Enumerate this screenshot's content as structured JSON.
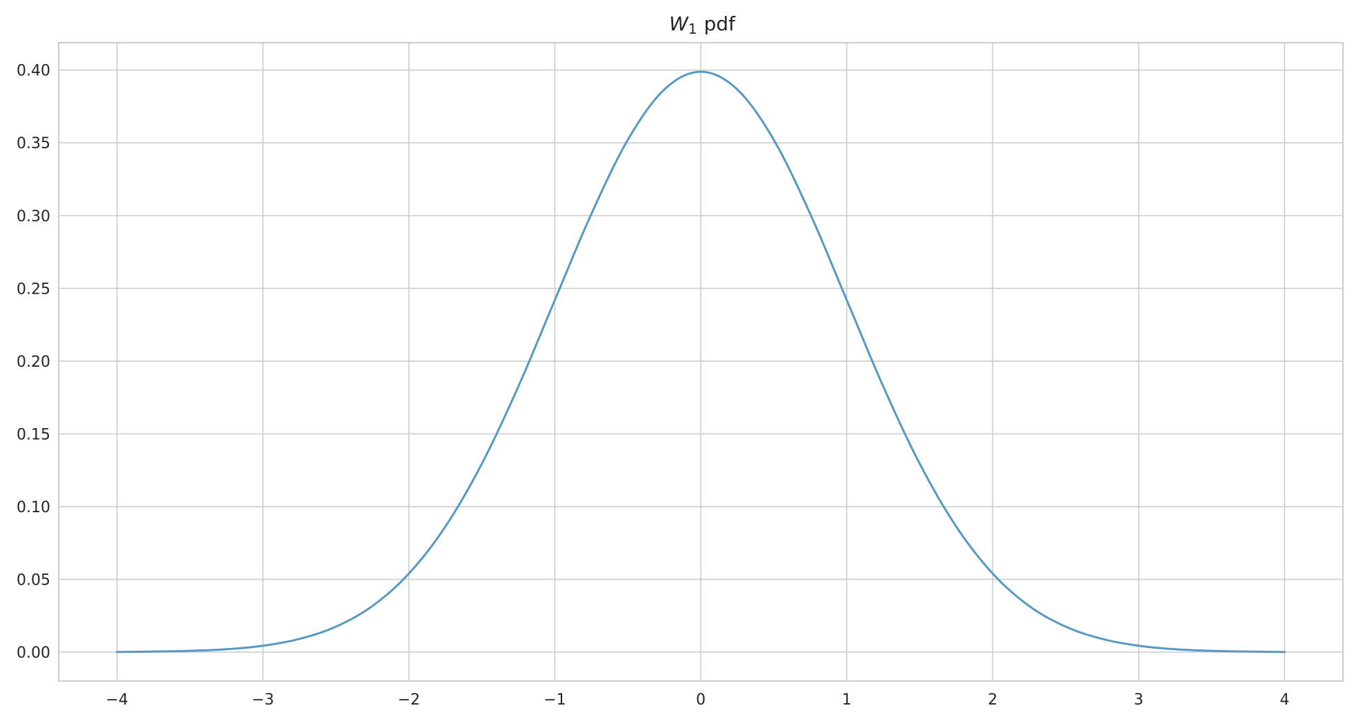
{
  "chart_data": {
    "type": "line",
    "title": {
      "var": "W",
      "sub": "1",
      "suffix": "pdf"
    },
    "xlabel": "",
    "ylabel": "",
    "xlim": [
      -4.4,
      4.4
    ],
    "ylim": [
      -0.0199,
      0.4188
    ],
    "grid": true,
    "legend": "none",
    "x_ticks": [
      -4,
      -3,
      -2,
      -1,
      0,
      1,
      2,
      3,
      4
    ],
    "x_tick_labels": [
      "−4",
      "−3",
      "−2",
      "−1",
      "0",
      "1",
      "2",
      "3",
      "4"
    ],
    "y_ticks": [
      0.0,
      0.05,
      0.1,
      0.15,
      0.2,
      0.25,
      0.3,
      0.35,
      0.4
    ],
    "y_tick_labels": [
      "0.00",
      "0.05",
      "0.10",
      "0.15",
      "0.20",
      "0.25",
      "0.30",
      "0.35",
      "0.40"
    ],
    "series": [
      {
        "color": "#5598c8",
        "x": [
          -4.0,
          -3.75,
          -3.5,
          -3.25,
          -3.0,
          -2.75,
          -2.5,
          -2.25,
          -2.0,
          -1.75,
          -1.5,
          -1.25,
          -1.0,
          -0.75,
          -0.5,
          -0.25,
          0.0,
          0.25,
          0.5,
          0.75,
          1.0,
          1.25,
          1.5,
          1.75,
          2.0,
          2.25,
          2.5,
          2.75,
          3.0,
          3.25,
          3.5,
          3.75,
          4.0
        ],
        "y": [
          0.0001,
          0.0004,
          0.0009,
          0.002,
          0.0044,
          0.0091,
          0.0175,
          0.0317,
          0.054,
          0.0863,
          0.1295,
          0.1826,
          0.242,
          0.3011,
          0.3521,
          0.3867,
          0.3989,
          0.3867,
          0.3521,
          0.3011,
          0.242,
          0.1826,
          0.1295,
          0.0863,
          0.054,
          0.0317,
          0.0175,
          0.0091,
          0.0044,
          0.002,
          0.0009,
          0.0004,
          0.0001
        ]
      }
    ]
  }
}
